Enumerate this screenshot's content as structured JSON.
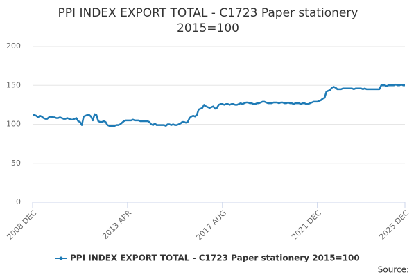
{
  "chart_data": {
    "type": "line",
    "title": "PPI INDEX EXPORT TOTAL - C1723 Paper stationery 2015=100",
    "credits": "Source:",
    "categories": [
      "2008 DEC",
      null,
      null,
      null,
      null,
      null,
      null,
      null,
      null,
      null,
      null,
      null,
      null,
      null,
      null,
      null,
      null,
      null,
      null,
      null,
      null,
      null,
      null,
      null,
      null,
      null,
      null,
      null,
      null,
      null,
      null,
      null,
      null,
      null,
      null,
      null,
      null,
      null,
      null,
      null,
      null,
      null,
      null,
      null,
      null,
      null,
      null,
      null,
      null,
      null,
      null,
      null,
      "2013 APR",
      null,
      null,
      null,
      null,
      null,
      null,
      null,
      null,
      null,
      null,
      null,
      null,
      null,
      null,
      null,
      null,
      null,
      null,
      null,
      null,
      null,
      null,
      null,
      null,
      null,
      null,
      null,
      null,
      null,
      null,
      null,
      null,
      null,
      null,
      null,
      null,
      null,
      null,
      null,
      null,
      null,
      null,
      null,
      null,
      null,
      null,
      null,
      null,
      null,
      null,
      null,
      "2017 AUG",
      null,
      null,
      null,
      null,
      null,
      null,
      null,
      null,
      null,
      null,
      null,
      null,
      null,
      null,
      null,
      null,
      null,
      null,
      null,
      null,
      null,
      null,
      null,
      null,
      null,
      null,
      null,
      null,
      null,
      null,
      null,
      null,
      null,
      null,
      null,
      null,
      null,
      null,
      null,
      null,
      null,
      null,
      null,
      null,
      null,
      null,
      null,
      null,
      null,
      null,
      null,
      "2021 DEC",
      null,
      null,
      null,
      null,
      null,
      null,
      null,
      null,
      null,
      null,
      null,
      null,
      null,
      null,
      null,
      null,
      null,
      null,
      null,
      null,
      null,
      null,
      null,
      null,
      null,
      null,
      null,
      null,
      null,
      null,
      null,
      null,
      null,
      null,
      null,
      null,
      null,
      null,
      null,
      null,
      null,
      null,
      null,
      null,
      null,
      null,
      null,
      "2025 DEC"
    ],
    "series": [
      {
        "name": "PPI INDEX EXPORT TOTAL - C1723 Paper stationery 2015=100",
        "color": "#1f7bb6",
        "values": [
          112,
          112,
          111,
          109,
          111,
          110,
          108,
          107,
          107,
          109,
          110,
          109,
          109,
          108,
          108,
          109,
          108,
          107,
          107,
          108,
          107,
          106,
          106,
          107,
          108,
          104,
          103,
          99,
          110,
          111,
          112,
          112,
          110,
          105,
          113,
          112,
          104,
          103,
          103,
          104,
          103,
          99,
          98,
          98,
          98,
          98,
          99,
          99,
          100,
          102,
          104,
          105,
          105,
          105,
          105,
          106,
          105,
          105,
          105,
          104,
          104,
          104,
          104,
          104,
          103,
          100,
          99,
          101,
          99,
          99,
          99,
          99,
          99,
          98,
          100,
          100,
          99,
          100,
          99,
          99,
          100,
          101,
          103,
          103,
          102,
          103,
          108,
          110,
          111,
          110,
          112,
          119,
          120,
          121,
          125,
          123,
          122,
          121,
          122,
          123,
          120,
          121,
          125,
          126,
          126,
          125,
          126,
          126,
          125,
          126,
          126,
          125,
          125,
          126,
          127,
          126,
          127,
          128,
          128,
          127,
          127,
          126,
          126,
          127,
          127,
          128,
          129,
          129,
          128,
          127,
          127,
          127,
          128,
          128,
          128,
          127,
          128,
          128,
          127,
          127,
          128,
          127,
          127,
          126,
          127,
          127,
          127,
          126,
          127,
          127,
          126,
          126,
          127,
          128,
          129,
          129,
          129,
          130,
          131,
          133,
          134,
          142,
          143,
          144,
          147,
          148,
          147,
          145,
          145,
          145,
          146,
          146,
          146,
          146,
          146,
          146,
          145,
          146,
          146,
          146,
          146,
          145,
          146,
          145,
          145,
          145,
          145,
          145,
          145,
          145,
          145,
          150,
          150,
          150,
          149,
          150,
          150,
          150,
          150,
          151,
          150,
          150,
          151,
          150,
          150
        ]
      }
    ],
    "ylim": [
      0,
      200
    ],
    "yticks": [
      0,
      50,
      100,
      150,
      200
    ],
    "grid": true
  }
}
